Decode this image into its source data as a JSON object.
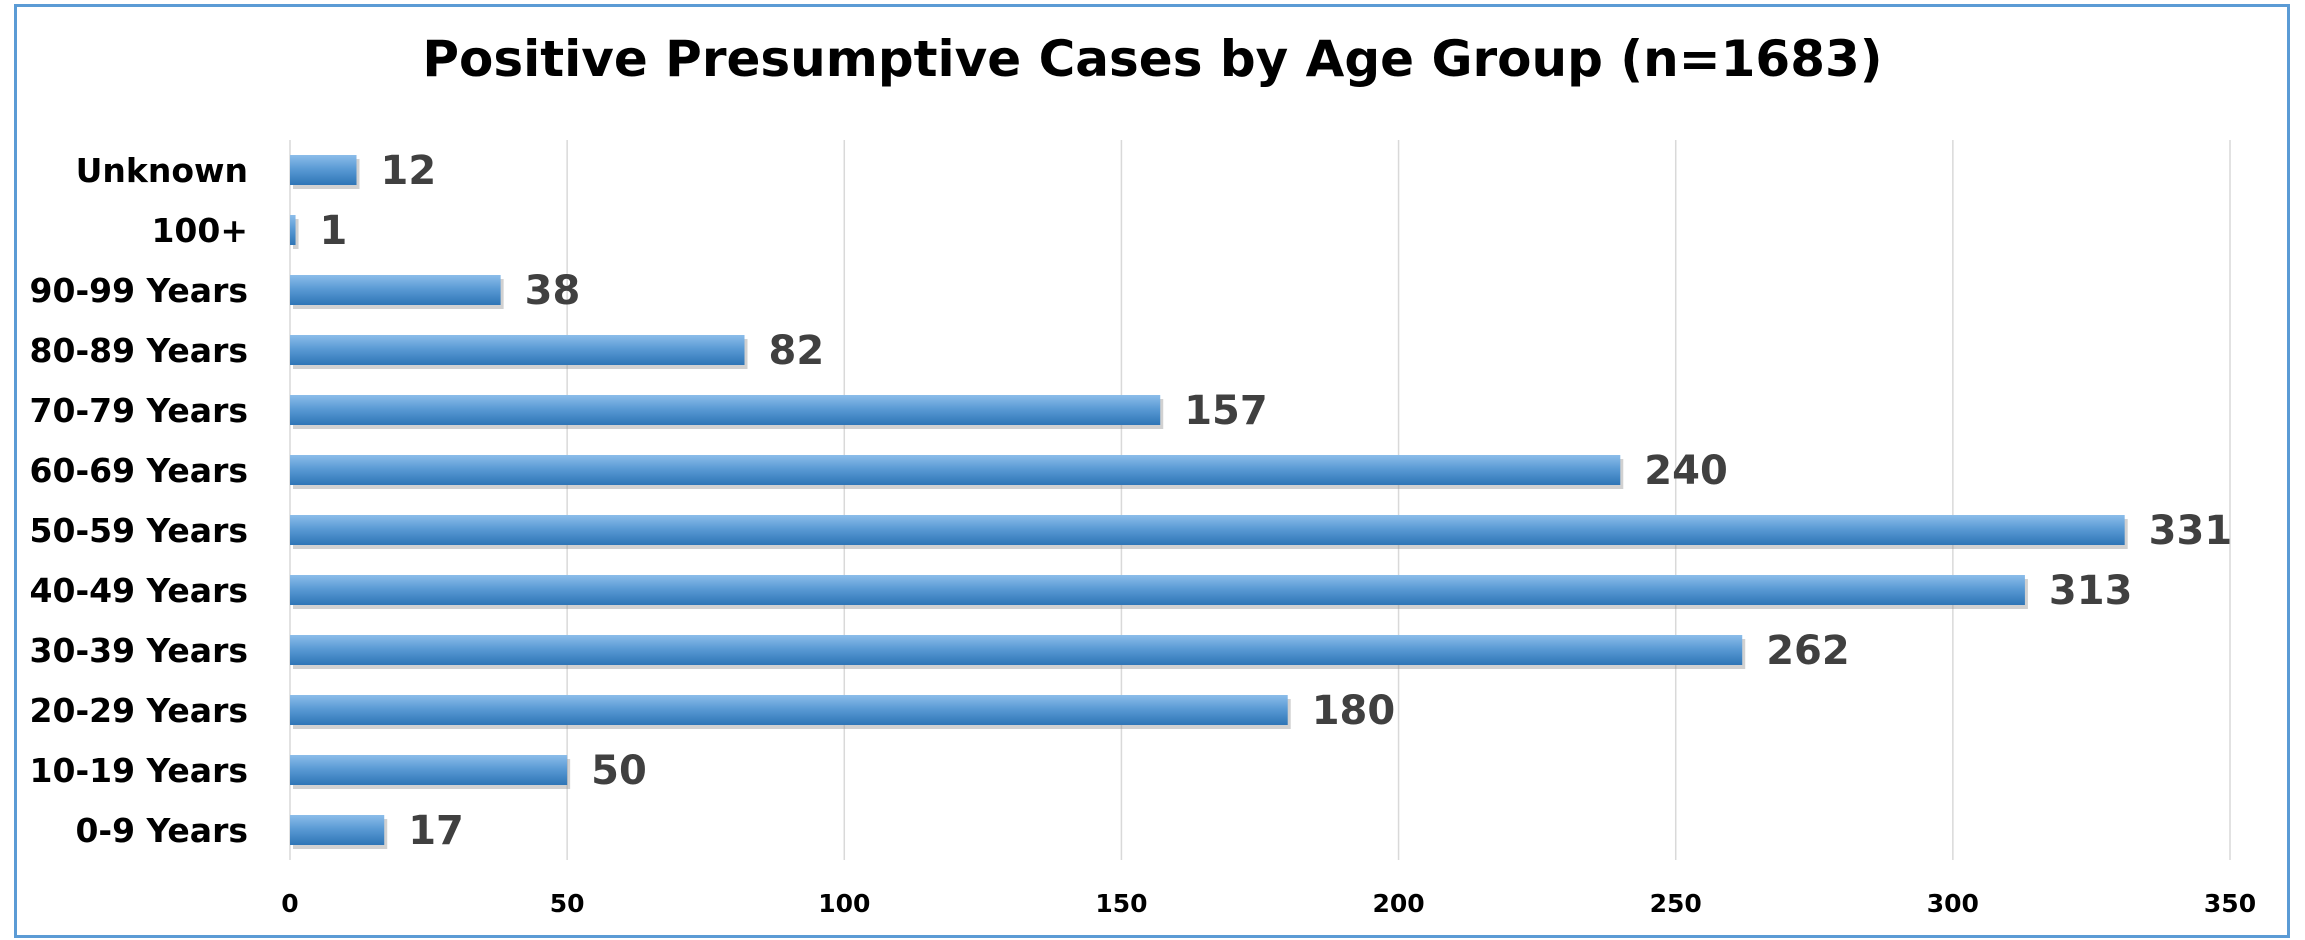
{
  "chart_data": {
    "type": "bar",
    "orientation": "horizontal",
    "title": "Positive Presumptive Cases by Age Group (n=1683)",
    "categories": [
      "Unknown",
      "100+",
      "90-99 Years",
      "80-89 Years",
      "70-79 Years",
      "60-69 Years",
      "50-59 Years",
      "40-49 Years",
      "30-39 Years",
      "20-29 Years",
      "10-19 Years",
      "0-9 Years"
    ],
    "values": [
      12,
      1,
      38,
      82,
      157,
      240,
      331,
      313,
      262,
      180,
      50,
      17
    ],
    "xlim": [
      0,
      350
    ],
    "xticks": [
      0,
      50,
      100,
      150,
      200,
      250,
      300,
      350
    ],
    "grid": true,
    "data_labels": true,
    "legend": "none",
    "colors": {
      "bar": "#5b9bd5",
      "bar_dark": "#2e75b6",
      "gridline": "#d9d9d9",
      "frame": "#5b9bd5"
    }
  }
}
